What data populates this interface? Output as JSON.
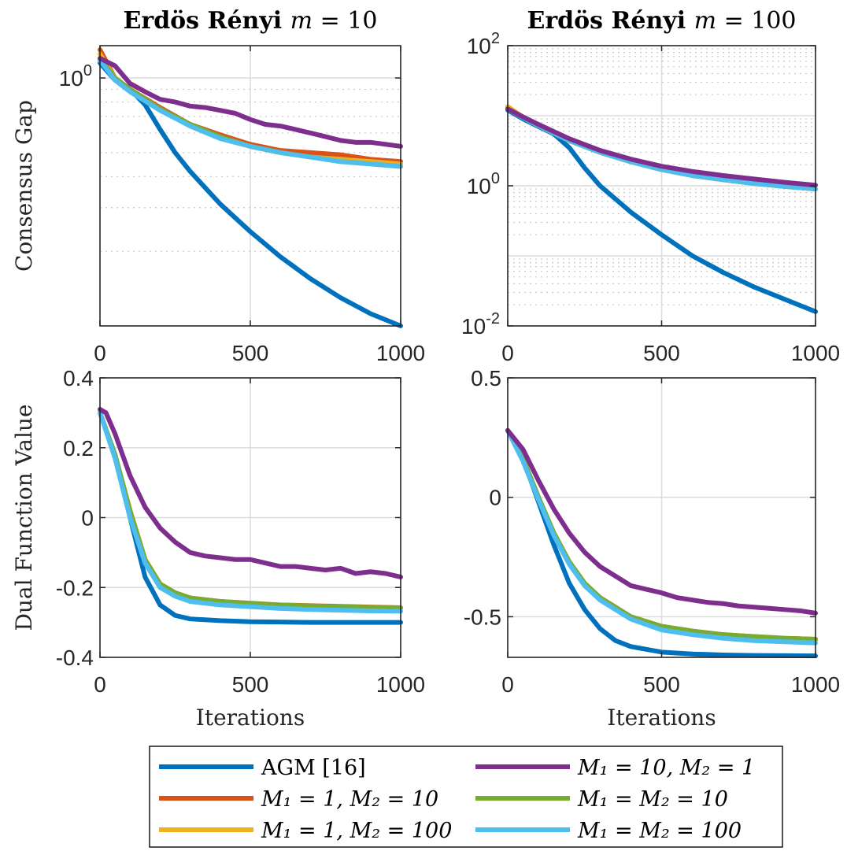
{
  "chart_data": [
    {
      "type": "line",
      "title": "Erdös Rényi m = 10",
      "xlabel": "",
      "ylabel": "Consensus Gap",
      "xlim": [
        0,
        1000
      ],
      "ylim": [
        0.1,
        1.35
      ],
      "yscale": "log",
      "xticks": [
        0,
        500,
        1000
      ],
      "xtick_labels": [
        "0",
        "500",
        "1000"
      ],
      "ytick_labels": [
        {
          "base": "10",
          "exp": "0",
          "value": 1
        }
      ],
      "grid": true,
      "series": [
        {
          "name": "AGM [16]",
          "color": "#0072BD",
          "x": [
            0,
            50,
            100,
            150,
            200,
            250,
            300,
            400,
            500,
            600,
            700,
            800,
            900,
            1000
          ],
          "values": [
            1.15,
            0.98,
            0.9,
            0.78,
            0.62,
            0.5,
            0.42,
            0.31,
            0.24,
            0.19,
            0.155,
            0.13,
            0.112,
            0.1
          ]
        },
        {
          "name": "M1 = 1, M2 = 10",
          "color": "#D95319",
          "x": [
            0,
            50,
            100,
            200,
            300,
            400,
            500,
            600,
            700,
            800,
            900,
            1000
          ],
          "values": [
            1.3,
            1.0,
            0.9,
            0.76,
            0.65,
            0.59,
            0.54,
            0.51,
            0.5,
            0.49,
            0.47,
            0.46
          ]
        },
        {
          "name": "M1 = 1, M2 = 100",
          "color": "#EDB120",
          "x": [
            0,
            50,
            100,
            200,
            300,
            400,
            500,
            600,
            700,
            800,
            900,
            1000
          ],
          "values": [
            1.25,
            1.0,
            0.9,
            0.75,
            0.64,
            0.57,
            0.53,
            0.5,
            0.48,
            0.47,
            0.46,
            0.45
          ]
        },
        {
          "name": "M1 = 10, M2 = 1",
          "color": "#7E2F8E",
          "x": [
            0,
            50,
            100,
            150,
            200,
            250,
            300,
            350,
            400,
            450,
            500,
            550,
            600,
            650,
            700,
            750,
            800,
            850,
            900,
            950,
            1000
          ],
          "values": [
            1.2,
            1.12,
            0.95,
            0.88,
            0.82,
            0.8,
            0.77,
            0.76,
            0.74,
            0.72,
            0.68,
            0.65,
            0.64,
            0.62,
            0.6,
            0.58,
            0.56,
            0.55,
            0.55,
            0.54,
            0.53
          ]
        },
        {
          "name": "M1 = M2 = 10",
          "color": "#77AC30",
          "x": [
            0,
            50,
            100,
            200,
            300,
            400,
            500,
            600,
            700,
            800,
            900,
            1000
          ],
          "values": [
            1.2,
            1.0,
            0.9,
            0.75,
            0.65,
            0.58,
            0.53,
            0.5,
            0.48,
            0.46,
            0.45,
            0.44
          ]
        },
        {
          "name": "M1 = M2 = 100",
          "color": "#4DBEEE",
          "x": [
            0,
            50,
            100,
            200,
            300,
            400,
            500,
            600,
            700,
            800,
            900,
            1000
          ],
          "values": [
            1.18,
            0.98,
            0.88,
            0.74,
            0.64,
            0.57,
            0.53,
            0.5,
            0.48,
            0.46,
            0.45,
            0.44
          ]
        }
      ]
    },
    {
      "type": "line",
      "title": "Erdös Rényi m = 100",
      "xlabel": "",
      "ylabel": "",
      "xlim": [
        0,
        1000
      ],
      "ylim": [
        0.01,
        100
      ],
      "yscale": "log",
      "xticks": [
        0,
        500,
        1000
      ],
      "xtick_labels": [
        "0",
        "500",
        "1000"
      ],
      "ytick_labels": [
        {
          "base": "10",
          "exp": "2",
          "value": 100
        },
        {
          "base": "10",
          "exp": "0",
          "value": 1
        },
        {
          "base": "10",
          "exp": "-2",
          "value": 0.01
        }
      ],
      "grid": true,
      "series": [
        {
          "name": "AGM [16]",
          "color": "#0072BD",
          "x": [
            0,
            50,
            100,
            150,
            200,
            250,
            300,
            400,
            500,
            600,
            700,
            800,
            900,
            1000
          ],
          "values": [
            12,
            9,
            7,
            5.5,
            3.5,
            1.8,
            1.0,
            0.42,
            0.2,
            0.1,
            0.058,
            0.036,
            0.024,
            0.016
          ]
        },
        {
          "name": "M1 = 1, M2 = 10",
          "color": "#D95319",
          "x": [
            0,
            50,
            100,
            200,
            300,
            400,
            500,
            600,
            700,
            800,
            900,
            1000
          ],
          "values": [
            13,
            9.5,
            7.2,
            4.4,
            3.0,
            2.2,
            1.7,
            1.4,
            1.22,
            1.08,
            0.98,
            0.9
          ]
        },
        {
          "name": "M1 = 1, M2 = 100",
          "color": "#EDB120",
          "x": [
            0,
            50,
            100,
            200,
            300,
            400,
            500,
            600,
            700,
            800,
            900,
            1000
          ],
          "values": [
            13.5,
            9.5,
            7.2,
            4.4,
            3.0,
            2.2,
            1.7,
            1.4,
            1.22,
            1.08,
            0.98,
            0.9
          ]
        },
        {
          "name": "M1 = 10, M2 = 1",
          "color": "#7E2F8E",
          "x": [
            0,
            50,
            100,
            200,
            300,
            400,
            500,
            600,
            700,
            800,
            900,
            1000
          ],
          "values": [
            12.5,
            9.6,
            7.5,
            4.7,
            3.2,
            2.4,
            1.9,
            1.6,
            1.4,
            1.25,
            1.12,
            1.02
          ]
        },
        {
          "name": "M1 = M2 = 10",
          "color": "#77AC30",
          "x": [
            0,
            50,
            100,
            200,
            300,
            400,
            500,
            600,
            700,
            800,
            900,
            1000
          ],
          "values": [
            12.5,
            9.4,
            7.2,
            4.4,
            3.0,
            2.2,
            1.7,
            1.4,
            1.22,
            1.08,
            0.98,
            0.9
          ]
        },
        {
          "name": "M1 = M2 = 100",
          "color": "#4DBEEE",
          "x": [
            0,
            50,
            100,
            200,
            300,
            400,
            500,
            600,
            700,
            800,
            900,
            1000
          ],
          "values": [
            12.5,
            9.4,
            7.2,
            4.4,
            3.0,
            2.2,
            1.7,
            1.4,
            1.22,
            1.08,
            0.98,
            0.9
          ]
        }
      ]
    },
    {
      "type": "line",
      "title": "",
      "xlabel": "Iterations",
      "ylabel": "Dual Function Value",
      "xlim": [
        0,
        1000
      ],
      "ylim": [
        -0.4,
        0.4
      ],
      "yscale": "linear",
      "xticks": [
        0,
        500,
        1000
      ],
      "xtick_labels": [
        "0",
        "500",
        "1000"
      ],
      "ytick_labels": [
        {
          "label": "0.4",
          "value": 0.4
        },
        {
          "label": "0.2",
          "value": 0.2
        },
        {
          "label": "0",
          "value": 0
        },
        {
          "label": "-0.2",
          "value": -0.2
        },
        {
          "label": "-0.4",
          "value": -0.4
        }
      ],
      "grid": true,
      "series": [
        {
          "name": "AGM [16]",
          "color": "#0072BD",
          "x": [
            0,
            50,
            100,
            150,
            200,
            250,
            300,
            400,
            500,
            600,
            700,
            800,
            900,
            1000
          ],
          "values": [
            0.3,
            0.18,
            0.0,
            -0.17,
            -0.25,
            -0.28,
            -0.29,
            -0.295,
            -0.298,
            -0.299,
            -0.3,
            -0.3,
            -0.3,
            -0.3
          ]
        },
        {
          "name": "M1 = 1, M2 = 10",
          "color": "#D95319",
          "x": [
            0,
            50,
            100,
            150,
            200,
            250,
            300,
            400,
            500,
            600,
            700,
            800,
            900,
            1000
          ],
          "values": [
            0.3,
            0.18,
            0.02,
            -0.12,
            -0.19,
            -0.215,
            -0.23,
            -0.24,
            -0.245,
            -0.25,
            -0.252,
            -0.254,
            -0.256,
            -0.258
          ]
        },
        {
          "name": "M1 = 1, M2 = 100",
          "color": "#EDB120",
          "x": [
            0,
            50,
            100,
            150,
            200,
            250,
            300,
            400,
            500,
            600,
            700,
            800,
            900,
            1000
          ],
          "values": [
            0.3,
            0.18,
            0.02,
            -0.12,
            -0.19,
            -0.215,
            -0.23,
            -0.242,
            -0.248,
            -0.252,
            -0.255,
            -0.257,
            -0.259,
            -0.26
          ]
        },
        {
          "name": "M1 = 10, M2 = 1",
          "color": "#7E2F8E",
          "x": [
            0,
            20,
            50,
            100,
            150,
            200,
            250,
            300,
            350,
            400,
            450,
            500,
            550,
            600,
            650,
            700,
            750,
            800,
            850,
            900,
            950,
            1000
          ],
          "values": [
            0.31,
            0.3,
            0.24,
            0.12,
            0.03,
            -0.03,
            -0.07,
            -0.1,
            -0.11,
            -0.115,
            -0.12,
            -0.12,
            -0.13,
            -0.14,
            -0.14,
            -0.145,
            -0.15,
            -0.145,
            -0.16,
            -0.155,
            -0.16,
            -0.17
          ]
        },
        {
          "name": "M1 = M2 = 10",
          "color": "#77AC30",
          "x": [
            0,
            50,
            100,
            150,
            200,
            250,
            300,
            400,
            500,
            600,
            700,
            800,
            900,
            1000
          ],
          "values": [
            0.3,
            0.18,
            0.02,
            -0.12,
            -0.19,
            -0.215,
            -0.23,
            -0.24,
            -0.246,
            -0.25,
            -0.253,
            -0.255,
            -0.257,
            -0.258
          ]
        },
        {
          "name": "M1 = M2 = 100",
          "color": "#4DBEEE",
          "x": [
            0,
            50,
            100,
            150,
            200,
            250,
            300,
            400,
            500,
            600,
            700,
            800,
            900,
            1000
          ],
          "values": [
            0.3,
            0.17,
            0.0,
            -0.13,
            -0.2,
            -0.225,
            -0.24,
            -0.25,
            -0.255,
            -0.26,
            -0.263,
            -0.265,
            -0.267,
            -0.268
          ]
        }
      ]
    },
    {
      "type": "line",
      "title": "",
      "xlabel": "Iterations",
      "ylabel": "",
      "xlim": [
        0,
        1000
      ],
      "ylim": [
        -0.67,
        0.5
      ],
      "yscale": "linear",
      "xticks": [
        0,
        500,
        1000
      ],
      "xtick_labels": [
        "0",
        "500",
        "1000"
      ],
      "ytick_labels": [
        {
          "label": "0.5",
          "value": 0.5
        },
        {
          "label": "0",
          "value": 0
        },
        {
          "label": "-0.5",
          "value": -0.5
        }
      ],
      "grid": true,
      "series": [
        {
          "name": "AGM [16]",
          "color": "#0072BD",
          "x": [
            0,
            50,
            100,
            150,
            200,
            250,
            300,
            350,
            400,
            500,
            600,
            700,
            800,
            900,
            1000
          ],
          "values": [
            0.28,
            0.16,
            -0.02,
            -0.2,
            -0.36,
            -0.47,
            -0.55,
            -0.6,
            -0.625,
            -0.648,
            -0.656,
            -0.66,
            -0.662,
            -0.663,
            -0.664
          ]
        },
        {
          "name": "M1 = 1, M2 = 10",
          "color": "#D95319",
          "x": [
            0,
            50,
            100,
            150,
            200,
            250,
            300,
            400,
            500,
            600,
            700,
            800,
            900,
            1000
          ],
          "values": [
            0.28,
            0.16,
            0.0,
            -0.15,
            -0.27,
            -0.36,
            -0.42,
            -0.5,
            -0.54,
            -0.56,
            -0.575,
            -0.583,
            -0.59,
            -0.594
          ]
        },
        {
          "name": "M1 = 1, M2 = 100",
          "color": "#EDB120",
          "x": [
            0,
            50,
            100,
            150,
            200,
            250,
            300,
            400,
            500,
            600,
            700,
            800,
            900,
            1000
          ],
          "values": [
            0.28,
            0.16,
            0.0,
            -0.15,
            -0.27,
            -0.36,
            -0.42,
            -0.5,
            -0.545,
            -0.565,
            -0.58,
            -0.588,
            -0.594,
            -0.598
          ]
        },
        {
          "name": "M1 = 10, M2 = 1",
          "color": "#7E2F8E",
          "x": [
            0,
            50,
            100,
            150,
            200,
            250,
            300,
            350,
            400,
            450,
            500,
            550,
            600,
            650,
            700,
            750,
            800,
            850,
            900,
            950,
            1000
          ],
          "values": [
            0.28,
            0.2,
            0.07,
            -0.05,
            -0.15,
            -0.23,
            -0.29,
            -0.33,
            -0.37,
            -0.385,
            -0.4,
            -0.42,
            -0.43,
            -0.44,
            -0.445,
            -0.455,
            -0.46,
            -0.465,
            -0.47,
            -0.475,
            -0.485
          ]
        },
        {
          "name": "M1 = M2 = 10",
          "color": "#77AC30",
          "x": [
            0,
            50,
            100,
            150,
            200,
            250,
            300,
            400,
            500,
            600,
            700,
            800,
            900,
            1000
          ],
          "values": [
            0.28,
            0.16,
            0.0,
            -0.15,
            -0.27,
            -0.36,
            -0.42,
            -0.5,
            -0.54,
            -0.56,
            -0.575,
            -0.583,
            -0.59,
            -0.594
          ]
        },
        {
          "name": "M1 = M2 = 100",
          "color": "#4DBEEE",
          "x": [
            0,
            50,
            100,
            150,
            200,
            250,
            300,
            400,
            500,
            600,
            700,
            800,
            900,
            1000
          ],
          "values": [
            0.28,
            0.15,
            -0.01,
            -0.16,
            -0.28,
            -0.37,
            -0.43,
            -0.51,
            -0.555,
            -0.575,
            -0.59,
            -0.6,
            -0.605,
            -0.61
          ]
        }
      ]
    }
  ],
  "legend": {
    "placement": "bottom-center",
    "entries": [
      {
        "color": "#0072BD",
        "label": "AGM [16]"
      },
      {
        "color": "#7E2F8E",
        "label": "M₁ = 10, M₂ = 1"
      },
      {
        "color": "#D95319",
        "label": "M₁ = 1, M₂ = 10"
      },
      {
        "color": "#77AC30",
        "label": "M₁ = M₂ = 10"
      },
      {
        "color": "#EDB120",
        "label": "M₁ = 1, M₂ = 100"
      },
      {
        "color": "#4DBEEE",
        "label": "M₁ = M₂ = 100"
      }
    ]
  }
}
